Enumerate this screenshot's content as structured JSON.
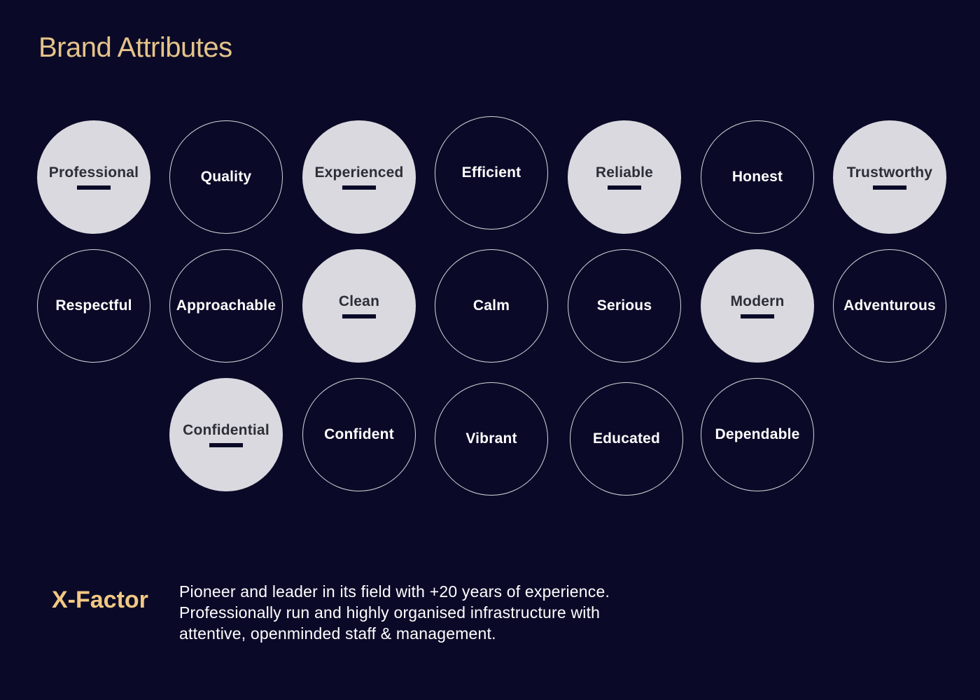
{
  "title": "Brand Attributes",
  "attributes": [
    {
      "label": "Professional",
      "selected": true
    },
    {
      "label": "Quality",
      "selected": false
    },
    {
      "label": "Experienced",
      "selected": true
    },
    {
      "label": "Efficient",
      "selected": false
    },
    {
      "label": "Reliable",
      "selected": true
    },
    {
      "label": "Honest",
      "selected": false
    },
    {
      "label": "Trustworthy",
      "selected": true
    },
    {
      "label": "Respectful",
      "selected": false
    },
    {
      "label": "Approachable",
      "selected": false
    },
    {
      "label": "Clean",
      "selected": true
    },
    {
      "label": "Calm",
      "selected": false
    },
    {
      "label": "Serious",
      "selected": false
    },
    {
      "label": "Modern",
      "selected": true
    },
    {
      "label": "Adventurous",
      "selected": false
    },
    {
      "label": "Confidential",
      "selected": true
    },
    {
      "label": "Confident",
      "selected": false
    },
    {
      "label": "Vibrant",
      "selected": false
    },
    {
      "label": "Educated",
      "selected": false
    },
    {
      "label": "Dependable",
      "selected": false
    }
  ],
  "xfactor": {
    "label": "X-Factor",
    "lines": [
      "Pioneer and leader in its field with +20 years of experience.",
      "Professionally run and highly organised infrastructure with",
      "attentive, openminded staff & management."
    ]
  },
  "colors": {
    "background": "#0a0a28",
    "accent": "#e6c38a",
    "selected_fill": "#d9d9df",
    "outline": "#d6d6dc"
  }
}
